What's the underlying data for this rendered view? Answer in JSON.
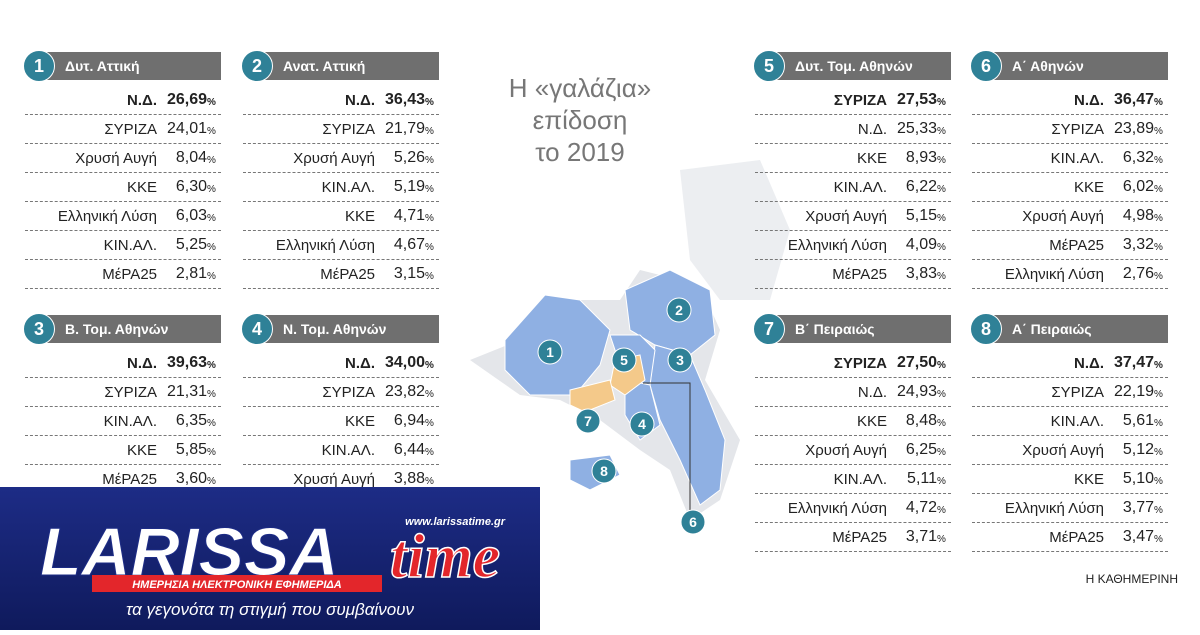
{
  "title": {
    "lines": [
      "Η «γαλάζια»",
      "επίδοση",
      "το 2019"
    ]
  },
  "districts": [
    {
      "number": "1",
      "name": "Δυτ. Αττική",
      "rows": [
        {
          "party": "Ν.Δ.",
          "value": "26,69",
          "unit": "%"
        },
        {
          "party": "ΣΥΡΙΖΑ",
          "value": "24,01",
          "unit": "%"
        },
        {
          "party": "Χρυσή Αυγή",
          "value": "8,04",
          "unit": "%"
        },
        {
          "party": "ΚΚΕ",
          "value": "6,30",
          "unit": "%"
        },
        {
          "party": "Ελληνική Λύση",
          "value": "6,03",
          "unit": "%"
        },
        {
          "party": "ΚΙΝ.ΑΛ.",
          "value": "5,25",
          "unit": "%"
        },
        {
          "party": "ΜέΡΑ25",
          "value": "2,81",
          "unit": "%"
        }
      ]
    },
    {
      "number": "2",
      "name": "Ανατ. Αττική",
      "rows": [
        {
          "party": "Ν.Δ.",
          "value": "36,43",
          "unit": "%"
        },
        {
          "party": "ΣΥΡΙΖΑ",
          "value": "21,79",
          "unit": "%"
        },
        {
          "party": "Χρυσή Αυγή",
          "value": "5,26",
          "unit": "%"
        },
        {
          "party": "ΚΙΝ.ΑΛ.",
          "value": "5,19",
          "unit": "%"
        },
        {
          "party": "ΚΚΕ",
          "value": "4,71",
          "unit": "%"
        },
        {
          "party": "Ελληνική Λύση",
          "value": "4,67",
          "unit": "%"
        },
        {
          "party": "ΜέΡΑ25",
          "value": "3,15",
          "unit": "%"
        }
      ]
    },
    {
      "number": "3",
      "name": "Β. Τομ. Αθηνών",
      "rows": [
        {
          "party": "Ν.Δ.",
          "value": "39,63",
          "unit": "%"
        },
        {
          "party": "ΣΥΡΙΖΑ",
          "value": "21,31",
          "unit": "%"
        },
        {
          "party": "ΚΙΝ.ΑΛ.",
          "value": "6,35",
          "unit": "%"
        },
        {
          "party": "ΚΚΕ",
          "value": "5,85",
          "unit": "%"
        },
        {
          "party": "ΜέΡΑ25",
          "value": "3,60",
          "unit": "%"
        }
      ]
    },
    {
      "number": "4",
      "name": "Ν. Τομ. Αθηνών",
      "rows": [
        {
          "party": "Ν.Δ.",
          "value": "34,00",
          "unit": "%"
        },
        {
          "party": "ΣΥΡΙΖΑ",
          "value": "23,82",
          "unit": "%"
        },
        {
          "party": "ΚΚΕ",
          "value": "6,94",
          "unit": "%"
        },
        {
          "party": "ΚΙΝ.ΑΛ.",
          "value": "6,44",
          "unit": "%"
        },
        {
          "party": "Χρυσή Αυγή",
          "value": "3,88",
          "unit": "%"
        }
      ]
    },
    {
      "number": "5",
      "name": "Δυτ. Τομ. Αθηνών",
      "rows": [
        {
          "party": "ΣΥΡΙΖΑ",
          "value": "27,53",
          "unit": "%"
        },
        {
          "party": "Ν.Δ.",
          "value": "25,33",
          "unit": "%"
        },
        {
          "party": "ΚΚΕ",
          "value": "8,93",
          "unit": "%"
        },
        {
          "party": "ΚΙΝ.ΑΛ.",
          "value": "6,22",
          "unit": "%"
        },
        {
          "party": "Χρυσή Αυγή",
          "value": "5,15",
          "unit": "%"
        },
        {
          "party": "Ελληνική Λύση",
          "value": "4,09",
          "unit": "%"
        },
        {
          "party": "ΜέΡΑ25",
          "value": "3,83",
          "unit": "%"
        }
      ]
    },
    {
      "number": "6",
      "name": "Α΄ Αθηνών",
      "rows": [
        {
          "party": "Ν.Δ.",
          "value": "36,47",
          "unit": "%"
        },
        {
          "party": "ΣΥΡΙΖΑ",
          "value": "23,89",
          "unit": "%"
        },
        {
          "party": "ΚΙΝ.ΑΛ.",
          "value": "6,32",
          "unit": "%"
        },
        {
          "party": "ΚΚΕ",
          "value": "6,02",
          "unit": "%"
        },
        {
          "party": "Χρυσή Αυγή",
          "value": "4,98",
          "unit": "%"
        },
        {
          "party": "ΜέΡΑ25",
          "value": "3,32",
          "unit": "%"
        },
        {
          "party": "Ελληνική Λύση",
          "value": "2,76",
          "unit": "%"
        }
      ]
    },
    {
      "number": "7",
      "name": "Β΄ Πειραιώς",
      "rows": [
        {
          "party": "ΣΥΡΙΖΑ",
          "value": "27,50",
          "unit": "%"
        },
        {
          "party": "Ν.Δ.",
          "value": "24,93",
          "unit": "%"
        },
        {
          "party": "ΚΚΕ",
          "value": "8,48",
          "unit": "%"
        },
        {
          "party": "Χρυσή Αυγή",
          "value": "6,25",
          "unit": "%"
        },
        {
          "party": "ΚΙΝ.ΑΛ.",
          "value": "5,11",
          "unit": "%"
        },
        {
          "party": "Ελληνική Λύση",
          "value": "4,72",
          "unit": "%"
        },
        {
          "party": "ΜέΡΑ25",
          "value": "3,71",
          "unit": "%"
        }
      ]
    },
    {
      "number": "8",
      "name": "Α΄ Πειραιώς",
      "rows": [
        {
          "party": "Ν.Δ.",
          "value": "37,47",
          "unit": "%"
        },
        {
          "party": "ΣΥΡΙΖΑ",
          "value": "22,19",
          "unit": "%"
        },
        {
          "party": "ΚΙΝ.ΑΛ.",
          "value": "5,61",
          "unit": "%"
        },
        {
          "party": "Χρυσή Αυγή",
          "value": "5,12",
          "unit": "%"
        },
        {
          "party": "ΚΚΕ",
          "value": "5,10",
          "unit": "%"
        },
        {
          "party": "Ελληνική Λύση",
          "value": "3,77",
          "unit": "%"
        },
        {
          "party": "ΜέΡΑ25",
          "value": "3,47",
          "unit": "%"
        }
      ]
    }
  ],
  "source": "Η ΚΑΘΗΜΕΡΙΝΗ",
  "logo": {
    "name": "LARISSA",
    "name2": "time",
    "url": "www.larissatime.gr",
    "tagline": "ΗΜΕΡΗΣΙΑ ΗΛΕΚΤΡΟΝΙΚΗ ΕΦΗΜΕΡΙΔΑ",
    "slogan": "τα γεγονότα τη στιγμή που συμβαίνουν"
  }
}
